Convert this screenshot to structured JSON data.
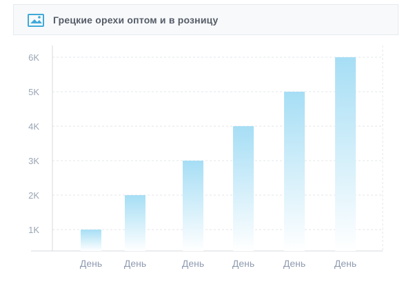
{
  "header": {
    "title": "Грецкие орехи оптом и в розницу",
    "icon": "image-icon"
  },
  "colors": {
    "bar_top": "#a6def5",
    "bar_bottom": "#ffffff",
    "grid": "#e3e6ea",
    "axis": "#d5d9de"
  },
  "chart_data": {
    "type": "bar",
    "title": "",
    "categories": [
      "День",
      "День",
      "День",
      "День",
      "День",
      "День"
    ],
    "values": [
      1000,
      2000,
      3000,
      4000,
      5000,
      6000
    ],
    "ylim": [
      0,
      6000
    ],
    "yticks": [
      1000,
      2000,
      3000,
      4000,
      5000,
      6000
    ],
    "ytick_labels": [
      "1K",
      "2K",
      "3K",
      "4K",
      "5K",
      "6K"
    ],
    "xlabel": "",
    "ylabel": "",
    "grid": true
  }
}
